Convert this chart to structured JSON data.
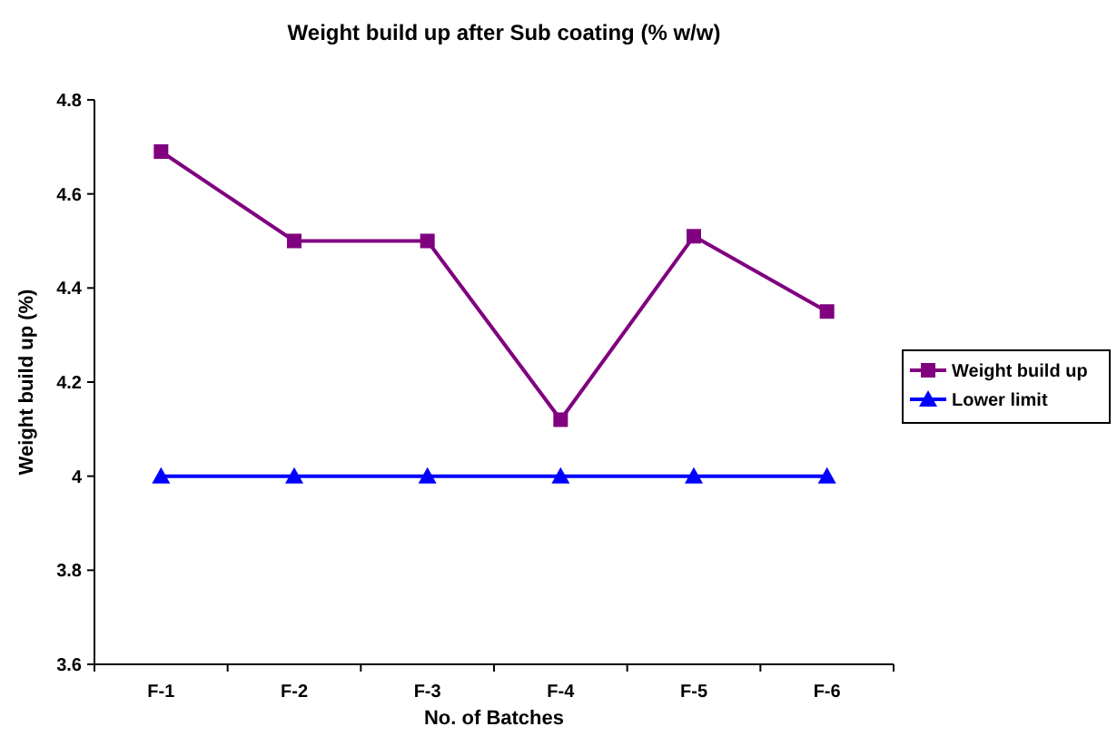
{
  "chart_data": {
    "type": "line",
    "title": "Weight build up after Sub coating (% w/w)",
    "xlabel": "No. of Batches",
    "ylabel": "Weight build up (%)",
    "categories": [
      "F-1",
      "F-2",
      "F-3",
      "F-4",
      "F-5",
      "F-6"
    ],
    "series": [
      {
        "name": "Weight build up",
        "color": "#800080",
        "values": [
          4.69,
          4.5,
          4.5,
          4.12,
          4.51,
          4.35
        ],
        "marker": "square"
      },
      {
        "name": "Lower limit",
        "color": "#0000ff",
        "values": [
          4,
          4,
          4,
          4,
          4,
          4
        ],
        "marker": "triangle"
      }
    ],
    "ylim": [
      3.6,
      4.8
    ],
    "yticks": [
      3.6,
      3.8,
      4,
      4.2,
      4.4,
      4.6,
      4.8
    ],
    "grid": false,
    "legend": "right",
    "line_style": "solid"
  }
}
